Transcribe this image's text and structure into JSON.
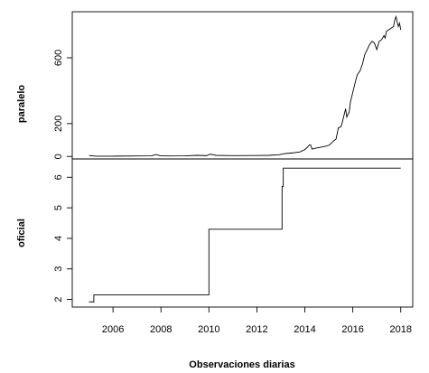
{
  "chart_data": {
    "type": "line",
    "xlabel": "Observaciones diarias",
    "x_ticks": [
      2006,
      2008,
      2010,
      2012,
      2014,
      2016,
      2018
    ],
    "xlim": [
      2004.3,
      2018.5
    ],
    "grid": false,
    "panels": [
      {
        "name": "paralelo",
        "ylabel": "paralelo",
        "ylim": [
          -15,
          880
        ],
        "y_ticks": [
          0,
          200,
          600
        ],
        "series": [
          {
            "x": [
              2005.0,
              2005.3,
              2006.0,
              2007.0,
              2007.6,
              2007.8,
              2007.95,
              2008.2,
              2009.0,
              2009.5,
              2009.9,
              2010.05,
              2010.3,
              2011.0,
              2012.0,
              2012.5,
              2012.9,
              2013.2,
              2013.5,
              2013.8,
              2014.0,
              2014.1,
              2014.2,
              2014.25,
              2014.3,
              2014.5,
              2014.8,
              2015.0,
              2015.1,
              2015.2,
              2015.3,
              2015.4,
              2015.5,
              2015.55,
              2015.6,
              2015.7,
              2015.75,
              2015.8,
              2015.85,
              2015.9,
              2016.0,
              2016.1,
              2016.15,
              2016.2,
              2016.3,
              2016.4,
              2016.5,
              2016.6,
              2016.7,
              2016.8,
              2016.9,
              2017.0,
              2017.1,
              2017.2,
              2017.3,
              2017.35,
              2017.4,
              2017.5,
              2017.6,
              2017.7,
              2017.75,
              2017.8,
              2017.85,
              2017.9,
              2017.95,
              2018.0
            ],
            "y": [
              6,
              2,
              2,
              3,
              4,
              12,
              5,
              3,
              4,
              7,
              5,
              14,
              7,
              5,
              6,
              7,
              10,
              18,
              22,
              28,
              42,
              55,
              72,
              68,
              45,
              52,
              60,
              68,
              80,
              95,
              105,
              175,
              180,
              200,
              230,
              290,
              240,
              255,
              270,
              330,
              390,
              450,
              480,
              500,
              520,
              560,
              620,
              650,
              680,
              700,
              690,
              650,
              700,
              710,
              735,
              720,
              760,
              770,
              780,
              790,
              830,
              850,
              820,
              790,
              810,
              770
            ]
          }
        ]
      },
      {
        "name": "oficial",
        "ylabel": "oficial",
        "ylim": [
          1.75,
          6.6
        ],
        "y_ticks": [
          2,
          3,
          4,
          5,
          6
        ],
        "series": [
          {
            "x": [
              2005.0,
              2005.2,
              2005.2,
              2010.0,
              2010.0,
              2013.05,
              2013.05,
              2013.1,
              2013.1,
              2018.0
            ],
            "y": [
              1.92,
              1.92,
              2.15,
              2.15,
              4.3,
              4.3,
              5.7,
              5.7,
              6.3,
              6.3
            ]
          }
        ]
      }
    ]
  }
}
